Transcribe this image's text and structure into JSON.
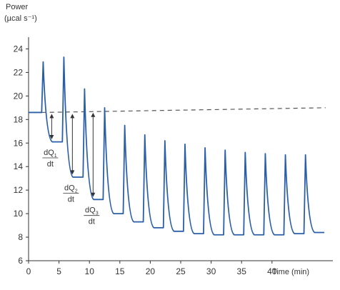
{
  "chart_data": {
    "type": "line",
    "ylabel_line1": "Power",
    "ylabel_line2": "(µcal s⁻¹)",
    "xlabel": "Time (min)",
    "xlim": [
      0,
      50
    ],
    "ylim": [
      6,
      25
    ],
    "xticks": [
      0,
      5,
      10,
      15,
      20,
      25,
      30,
      35,
      40
    ],
    "yticks": [
      6,
      8,
      10,
      12,
      14,
      16,
      18,
      20,
      22,
      24
    ],
    "grid": false,
    "colors": {
      "signal": "#2a5fa8",
      "baseline": "#555555",
      "axis": "#333333"
    },
    "baseline": {
      "style": "dashed",
      "x": [
        2.2,
        48.8
      ],
      "y": [
        18.6,
        19.0
      ]
    },
    "series": [
      {
        "peaks": [
          {
            "t": 2.2,
            "peak": 22.9,
            "floor": 16.1,
            "end": 4.5
          },
          {
            "t": 5.6,
            "peak": 23.3,
            "floor": 13.1,
            "end": 7.9
          },
          {
            "t": 9.0,
            "peak": 20.6,
            "floor": 11.2,
            "end": 11.4
          },
          {
            "t": 12.3,
            "peak": 19.0,
            "floor": 10.0,
            "end": 14.7
          },
          {
            "t": 15.6,
            "peak": 17.5,
            "floor": 9.3,
            "end": 18.0
          },
          {
            "t": 18.9,
            "peak": 16.7,
            "floor": 8.8,
            "end": 21.3
          },
          {
            "t": 22.2,
            "peak": 16.2,
            "floor": 8.5,
            "end": 24.6
          },
          {
            "t": 25.5,
            "peak": 15.9,
            "floor": 8.3,
            "end": 27.9
          },
          {
            "t": 28.8,
            "peak": 15.6,
            "floor": 8.2,
            "end": 31.2
          },
          {
            "t": 32.1,
            "peak": 15.4,
            "floor": 8.2,
            "end": 34.5
          },
          {
            "t": 35.4,
            "peak": 15.2,
            "floor": 8.2,
            "end": 37.8
          },
          {
            "t": 38.7,
            "peak": 15.1,
            "floor": 8.2,
            "end": 41.1
          },
          {
            "t": 42.0,
            "peak": 15.0,
            "floor": 8.3,
            "end": 44.4
          },
          {
            "t": 45.3,
            "peak": 15.0,
            "floor": 8.4,
            "end": 48.6
          }
        ],
        "initial_level": 18.6
      }
    ],
    "annotations": [
      {
        "label_main": "dQ",
        "label_sub": "1",
        "denominator": "dt",
        "x": 3.8,
        "y_top": 18.6,
        "y_bottom": 16.2
      },
      {
        "label_main": "dQ",
        "label_sub": "2",
        "denominator": "dt",
        "x": 7.2,
        "y_top": 18.6,
        "y_bottom": 13.2
      },
      {
        "label_main": "dQ",
        "label_sub": "3",
        "denominator": "dt",
        "x": 10.6,
        "y_top": 18.7,
        "y_bottom": 11.3
      }
    ]
  }
}
